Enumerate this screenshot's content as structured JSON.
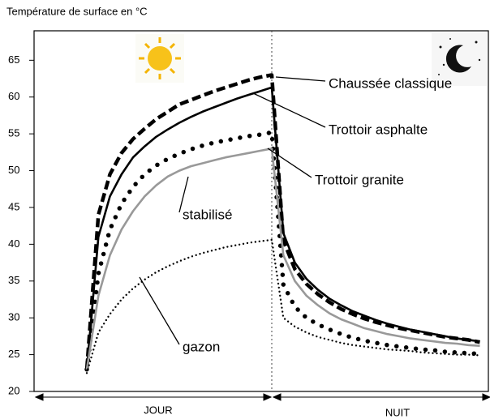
{
  "chart_data": {
    "type": "line",
    "y_axis_label": "Température de surface en °C",
    "periods": [
      "JOUR",
      "NUIT"
    ],
    "categories": [
      null,
      null,
      null,
      null,
      null,
      null,
      null,
      null,
      null,
      null,
      null,
      null,
      null,
      null,
      null,
      null,
      null,
      null,
      null,
      null,
      null,
      null,
      null,
      null,
      null,
      null,
      null,
      null,
      null,
      null,
      null,
      null,
      null,
      null,
      null
    ],
    "ylim": [
      20,
      69
    ],
    "yticks": [
      20,
      25,
      30,
      35,
      40,
      45,
      50,
      55,
      60,
      65
    ],
    "series": [
      {
        "name": "Chaussée classique",
        "color": "#000000",
        "style": "dashed",
        "values": [
          23,
          44,
          49.5,
          52.4,
          54.3,
          55.7,
          57,
          58,
          59,
          59.6,
          60.2,
          60.8,
          61.3,
          61.8,
          62.3,
          62.7,
          63,
          40.5,
          36.6,
          34.6,
          33.2,
          32.1,
          31.2,
          30.5,
          29.9,
          29.4,
          29,
          28.6,
          28.3,
          28,
          27.7,
          27.4,
          27.2,
          27,
          26.7
        ]
      },
      {
        "name": "Trottoir asphalte",
        "color": "#000000",
        "style": "solid",
        "values": [
          23,
          41,
          46.5,
          49.5,
          51.8,
          53.3,
          54.6,
          55.6,
          56.5,
          57.3,
          58,
          58.6,
          59.2,
          59.8,
          60.3,
          60.8,
          61.3,
          41.5,
          37.5,
          35.3,
          33.8,
          32.6,
          31.7,
          30.9,
          30.3,
          29.7,
          29.2,
          28.8,
          28.4,
          28.1,
          27.8,
          27.5,
          27.2,
          27,
          26.8
        ]
      },
      {
        "name": "Trottoir granite",
        "color": "#000000",
        "style": "dotted",
        "values": [
          23,
          36,
          42,
          45.5,
          47.8,
          49.5,
          50.7,
          51.6,
          52.3,
          52.9,
          53.4,
          53.8,
          54.1,
          54.4,
          54.7,
          54.9,
          55.2,
          34.5,
          31.5,
          30,
          29.1,
          28.4,
          27.8,
          27.3,
          26.9,
          26.6,
          26.3,
          26.1,
          25.9,
          25.7,
          25.6,
          25.4,
          25.3,
          25.2,
          25.1
        ]
      },
      {
        "name": "stabilisé",
        "color": "#999999",
        "style": "solid",
        "values": [
          23,
          33,
          38.5,
          42,
          44.5,
          46.5,
          48,
          49.2,
          50,
          50.6,
          51,
          51.4,
          51.8,
          52.1,
          52.4,
          52.7,
          53,
          38.5,
          35,
          33,
          31.7,
          30.6,
          29.8,
          29.2,
          28.6,
          28.2,
          27.8,
          27.5,
          27.2,
          27,
          26.8,
          26.6,
          26.5,
          26.3,
          26.2
        ]
      },
      {
        "name": "gazon",
        "color": "#000000",
        "style": "fine-dotted",
        "values": [
          22.5,
          28,
          30.5,
          32.5,
          34,
          35.2,
          36.2,
          37,
          37.7,
          38.3,
          38.8,
          39.2,
          39.6,
          39.9,
          40.2,
          40.4,
          40.6,
          30,
          28.8,
          28,
          27.4,
          27,
          26.6,
          26.3,
          26.1,
          25.9,
          25.7,
          25.6,
          25.5,
          25.3,
          25.2,
          25.1,
          25,
          25,
          24.9
        ]
      }
    ]
  }
}
